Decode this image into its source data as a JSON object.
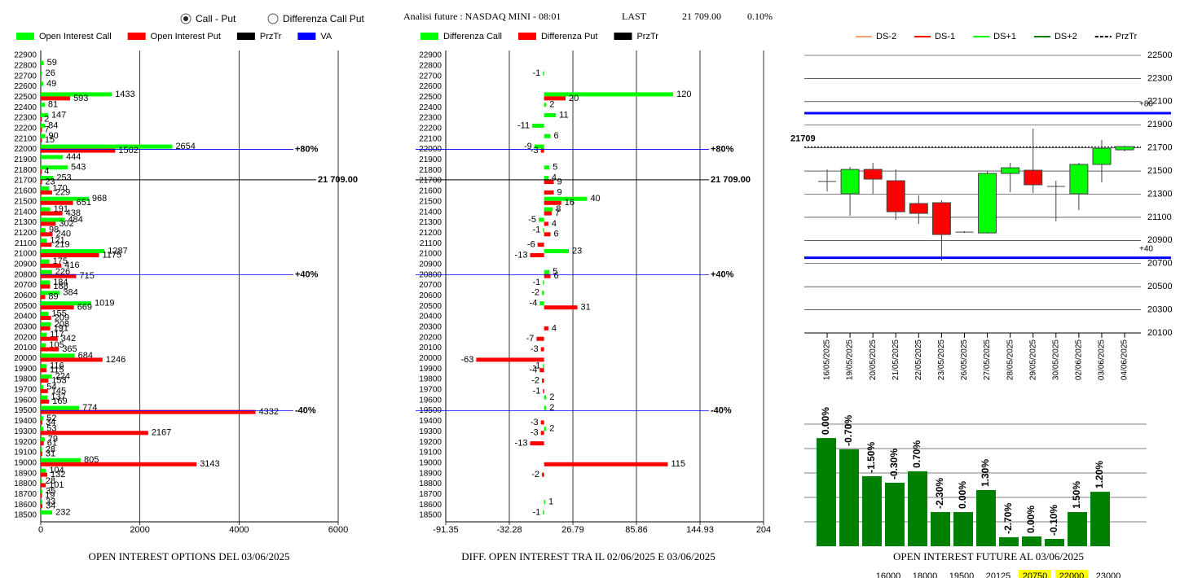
{
  "header": {
    "options": [
      {
        "label": "Call - Put",
        "checked": true
      },
      {
        "label": "Differenza Call Put",
        "checked": false
      }
    ],
    "title": "Analisi future : NASDAQ MINI - 08:01",
    "last_label": "LAST",
    "last_value": "21 709.00",
    "change": "0.10%"
  },
  "chart_data": [
    {
      "type": "hbar",
      "title": "OPEN INTEREST OPTIONS DEL 03/06/2025",
      "categories": [
        22900,
        22800,
        22700,
        22600,
        22500,
        22400,
        22300,
        22200,
        22100,
        22000,
        21900,
        21800,
        21700,
        21600,
        21500,
        21400,
        21300,
        21200,
        21100,
        21000,
        20900,
        20800,
        20700,
        20600,
        20500,
        20400,
        20300,
        20200,
        20100,
        20000,
        19900,
        19800,
        19700,
        19600,
        19500,
        19400,
        19300,
        19200,
        19100,
        19000,
        18900,
        18800,
        18700,
        18600,
        18500
      ],
      "series": [
        {
          "name": "Open Interest Call",
          "color": "#00ff00",
          "values": [
            null,
            59,
            26,
            49,
            1433,
            81,
            147,
            84,
            90,
            2654,
            444,
            543,
            253,
            170,
            968,
            191,
            484,
            98,
            121,
            1287,
            175,
            226,
            184,
            384,
            1019,
            155,
            208,
            117,
            105,
            684,
            116,
            224,
            54,
            137,
            774,
            52,
            53,
            79,
            28,
            805,
            104,
            28,
            35,
            33,
            232
          ]
        },
        {
          "name": "Open Interest Put",
          "color": "#ff0000",
          "values": [
            null,
            null,
            null,
            null,
            593,
            null,
            2,
            7,
            15,
            1502,
            null,
            4,
            23,
            229,
            651,
            438,
            302,
            240,
            219,
            1175,
            416,
            715,
            188,
            89,
            669,
            209,
            191,
            342,
            365,
            1246,
            115,
            153,
            145,
            169,
            4332,
            34,
            2167,
            61,
            31,
            3143,
            132,
            101,
            19,
            34,
            null
          ]
        }
      ],
      "legend_extra": [
        {
          "name": "PrzTr",
          "color": "#000000"
        },
        {
          "name": "VA",
          "color": "#0000ff"
        }
      ],
      "levels": [
        {
          "strike": 22000,
          "label": "+80%",
          "color": "#0000ff"
        },
        {
          "strike": 21709,
          "label": "21 709.00",
          "color": "#000000"
        },
        {
          "strike": 20800,
          "label": "+40%",
          "color": "#0000ff"
        },
        {
          "strike": 19500,
          "label": "-40%",
          "color": "#0000ff"
        }
      ],
      "xlim": [
        0,
        6000
      ],
      "xticks": [
        0,
        2000,
        4000,
        6000
      ]
    },
    {
      "type": "hbar",
      "title": "DIFF. OPEN INTEREST TRA IL 02/06/2025 E 03/06/2025",
      "categories": [
        22900,
        22800,
        22700,
        22600,
        22500,
        22400,
        22300,
        22200,
        22100,
        22000,
        21900,
        21800,
        21700,
        21600,
        21500,
        21400,
        21300,
        21200,
        21100,
        21000,
        20900,
        20800,
        20700,
        20600,
        20500,
        20400,
        20300,
        20200,
        20100,
        20000,
        19900,
        19800,
        19700,
        19600,
        19500,
        19400,
        19300,
        19200,
        19100,
        19000,
        18900,
        18800,
        18700,
        18600,
        18500
      ],
      "series": [
        {
          "name": "Differenza Call",
          "color": "#00ff00",
          "values": [
            null,
            null,
            -1,
            null,
            120,
            2,
            11,
            -11,
            6,
            -9,
            null,
            5,
            4,
            null,
            40,
            8,
            -5,
            -1,
            null,
            23,
            null,
            5,
            -1,
            -2,
            -4,
            null,
            null,
            null,
            null,
            null,
            -1,
            null,
            null,
            2,
            2,
            null,
            2,
            null,
            null,
            null,
            null,
            null,
            null,
            1,
            -1
          ]
        },
        {
          "name": "Differenza Put",
          "color": "#ff0000",
          "values": [
            null,
            null,
            null,
            null,
            20,
            null,
            null,
            null,
            null,
            -3,
            null,
            null,
            9,
            9,
            16,
            7,
            4,
            6,
            -6,
            -13,
            null,
            6,
            null,
            null,
            31,
            null,
            4,
            -7,
            -3,
            -63,
            -4,
            -2,
            -1,
            null,
            null,
            -3,
            -3,
            -13,
            null,
            115,
            -2,
            null,
            null,
            null,
            null
          ]
        }
      ],
      "legend_extra": [
        {
          "name": "PrzTr",
          "color": "#000000"
        }
      ],
      "levels": [
        {
          "strike": 22000,
          "label": "+80%",
          "color": "#0000ff"
        },
        {
          "strike": 21709,
          "label": "21 709.00",
          "color": "#000000"
        },
        {
          "strike": 20800,
          "label": "+40%",
          "color": "#0000ff"
        },
        {
          "strike": 19500,
          "label": "-40%",
          "color": "#0000ff"
        }
      ],
      "xlim": [
        -91.35,
        204
      ],
      "xticks": [
        -91.35,
        -32.28,
        26.79,
        85.86,
        144.93,
        204
      ]
    },
    {
      "type": "candlestick",
      "x": [
        "16/05/2025",
        "19/05/2025",
        "20/05/2025",
        "21/05/2025",
        "22/05/2025",
        "23/05/2025",
        "26/05/2025",
        "27/05/2025",
        "28/05/2025",
        "29/05/2025",
        "30/05/2025",
        "02/06/2025",
        "03/06/2025",
        "04/06/2025"
      ],
      "open": [
        21410,
        21303,
        21514,
        21416,
        21219,
        21226,
        20972,
        20965,
        21479,
        21507,
        21367,
        21303,
        21557,
        21683
      ],
      "high": [
        21514,
        21535,
        21571,
        21514,
        21289,
        21247,
        20980,
        21500,
        21571,
        21866,
        21416,
        21571,
        21768,
        21720
      ],
      "low": [
        21324,
        21113,
        21303,
        21078,
        21043,
        20726,
        20965,
        20958,
        21317,
        21310,
        21064,
        21162,
        21402,
        21670
      ],
      "close": [
        21410,
        21514,
        21430,
        21148,
        21134,
        20951,
        20972,
        21479,
        21528,
        21381,
        21367,
        21557,
        21697,
        21711
      ],
      "up_color": "#00ff00",
      "down_color": "#ff0000",
      "legend": [
        {
          "name": "DS-2",
          "color": "#f4a070"
        },
        {
          "name": "DS-1",
          "color": "#ff0000"
        },
        {
          "name": "DS+1",
          "color": "#00ff00"
        },
        {
          "name": "DS+2",
          "color": "#008000"
        },
        {
          "name": "PrzTr",
          "color": "#000000",
          "dashed": true
        }
      ],
      "price_line": 21709,
      "levels": [
        {
          "value": 22000,
          "label": "+80",
          "color": "#0000ff"
        },
        {
          "value": 20750,
          "label": "+40",
          "color": "#0000ff"
        }
      ],
      "ylim": [
        20100,
        22500
      ],
      "yticks": [
        20100,
        20300,
        20500,
        20700,
        20900,
        21100,
        21300,
        21500,
        21700,
        21900,
        22100,
        22300,
        22500
      ]
    },
    {
      "type": "bar",
      "title": "OPEN INTEREST FUTURE AL 03/06/2025",
      "color": "#008000",
      "values": [
        4.43,
        3.97,
        2.87,
        2.6,
        3.07,
        1.4,
        1.4,
        2.3,
        0.37,
        0.4,
        0.3,
        1.4,
        2.23
      ],
      "value_labels": [
        "0.00%",
        "-0.70%",
        "-1.50%",
        "-0.30%",
        "0.70%",
        "-2.30%",
        "0.00%",
        "1.30%",
        "-2.70%",
        "0.00%",
        "-0.10%",
        "1.50%",
        "1.20%"
      ],
      "ylim": [
        0,
        5
      ]
    }
  ],
  "future_strikes": [
    {
      "label": "16000",
      "highlight": false
    },
    {
      "label": "18000",
      "highlight": false
    },
    {
      "label": "19500",
      "highlight": false
    },
    {
      "label": "20125",
      "highlight": false
    },
    {
      "label": "20750",
      "highlight": true
    },
    {
      "label": "22000",
      "highlight": true
    },
    {
      "label": "23000",
      "highlight": false
    }
  ]
}
